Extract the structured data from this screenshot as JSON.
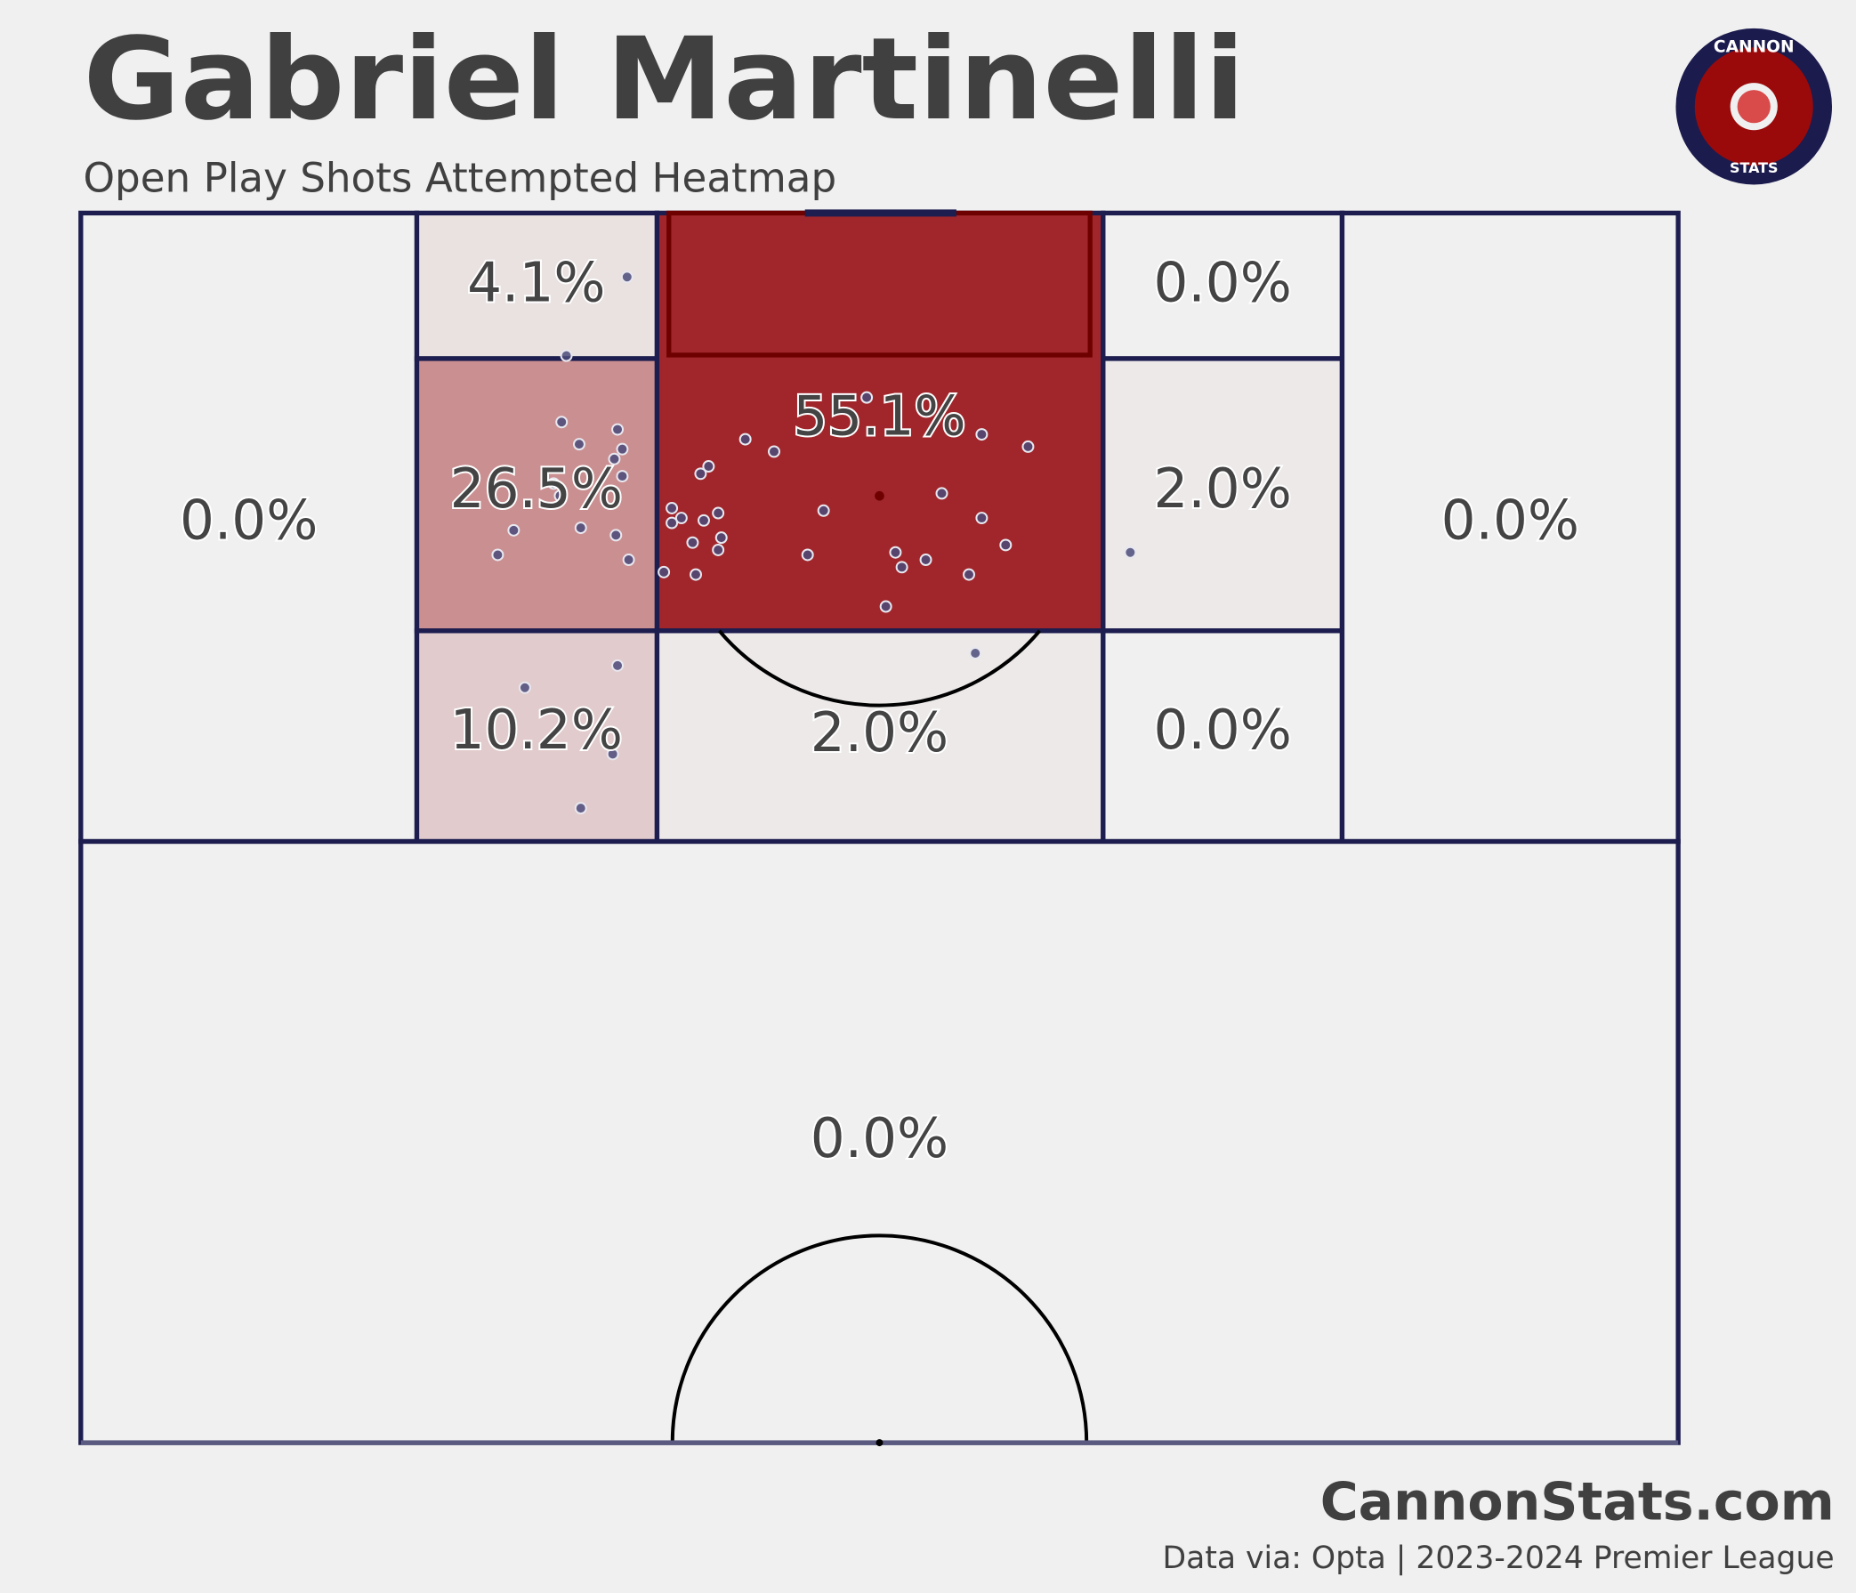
{
  "chart_data": {
    "type": "heatmap",
    "title": "Gabriel Martinelli",
    "subtitle": "Open Play Shots Attempted Heatmap",
    "site": "CannonStats.com",
    "source": "Data via: Opta | 2023-2024 Premier League",
    "logo_top": "CANNON",
    "logo_bottom": "STATS",
    "color_low": "#f0f0f0",
    "color_high": "#a0262b",
    "shot_color": "#4b4b7a",
    "xlim": [
      50,
      100
    ],
    "ylim": [
      0,
      100
    ],
    "zones": {
      "values": [
        0.0,
        4.1,
        26.5,
        10.2,
        55.1,
        2.0,
        0.0,
        2.0,
        0.0,
        0.0,
        0.0
      ],
      "value_labels": [
        "0.0%",
        "4.1%",
        "26.5%",
        "10.2%",
        "55.1%",
        "2.0%",
        "0.0%",
        "2.0%",
        "0.0%",
        "0.0%",
        "0.0%"
      ]
    },
    "shots": {
      "x": [
        97.4,
        94.2,
        92.5,
        91.5,
        91.2,
        90.6,
        90.4,
        90.0,
        89.7,
        90.8,
        90.3,
        91.0,
        90.5,
        89.4,
        89.3,
        89.0,
        88.5,
        88.6,
        88.0,
        87.6,
        87.4,
        87.5,
        87.8,
        87.9,
        87.6,
        87.2,
        87.1,
        86.9,
        86.8,
        86.6,
        86.3,
        86.5,
        86.1,
        86.1,
        86.2,
        85.9,
        85.9,
        85.6,
        85.4,
        85.3,
        85.3,
        86.2,
        84.0,
        82.1,
        81.6,
        80.7,
        78.0,
        75.8
      ],
      "y": [
        34.2,
        30.4,
        49.2,
        30.1,
        33.6,
        31.2,
        33.9,
        33.4,
        39.3,
        41.6,
        43.4,
        56.4,
        59.3,
        38.8,
        33.9,
        29.6,
        30.0,
        53.9,
        37.0,
        37.6,
        37.0,
        39.0,
        39.9,
        46.5,
        56.4,
        31.3,
        27.1,
        33.5,
        40.1,
        38.3,
        39.9,
        57.9,
        26.1,
        45.5,
        51.0,
        52.9,
        34.3,
        51.4,
        36.5,
        38.5,
        55.6,
        65.7,
        50.4,
        56.0,
        33.6,
        27.8,
        33.3,
        31.3
      ]
    }
  }
}
